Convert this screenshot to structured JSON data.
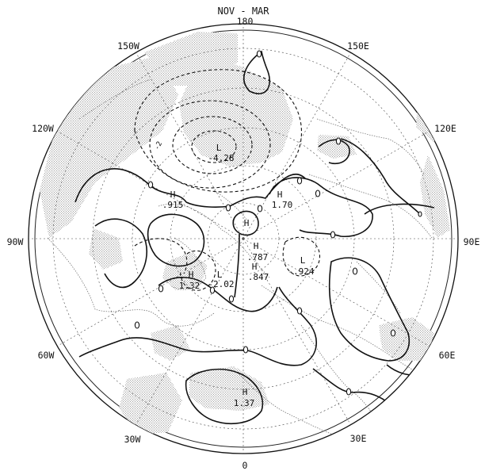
{
  "title": "NOV - MAR",
  "longitude_labels": [
    {
      "id": "180",
      "text": "180",
      "lon": 180
    },
    {
      "id": "150e",
      "text": "150E",
      "lon": 150
    },
    {
      "id": "120e",
      "text": "120E",
      "lon": 120
    },
    {
      "id": "90e",
      "text": "90E",
      "lon": 90
    },
    {
      "id": "60e",
      "text": "60E",
      "lon": 60
    },
    {
      "id": "30e",
      "text": "30E",
      "lon": 30
    },
    {
      "id": "0",
      "text": "0",
      "lon": 0
    },
    {
      "id": "30w",
      "text": "30W",
      "lon": -30
    },
    {
      "id": "60w",
      "text": "60W",
      "lon": -60
    },
    {
      "id": "90w",
      "text": "90W",
      "lon": -90
    },
    {
      "id": "120w",
      "text": "120W",
      "lon": -120
    },
    {
      "id": "150w",
      "text": "150W",
      "lon": -150
    }
  ],
  "centers": [
    {
      "id": "low-north-pacific",
      "type": "L",
      "value": "-4.28"
    },
    {
      "id": "high-east-pacific",
      "type": "H",
      "value": ".915"
    },
    {
      "id": "high-siberia",
      "type": "H",
      "value": "1.70"
    },
    {
      "id": "high-pole",
      "type": "H",
      "value": ""
    },
    {
      "id": "high-arctic",
      "type": "H",
      "value": ".787"
    },
    {
      "id": "high-scandinavia",
      "type": "H",
      "value": ".847"
    },
    {
      "id": "low-urals",
      "type": "L",
      "value": "-.924"
    },
    {
      "id": "high-greenland",
      "type": "H",
      "value": "1.32"
    },
    {
      "id": "low-iceland",
      "type": "L",
      "value": "-2.02"
    },
    {
      "id": "high-atlantic",
      "type": "H",
      "value": "1.37"
    }
  ],
  "contour_labels": [
    {
      "id": "minus-two",
      "text": "-2"
    }
  ]
}
